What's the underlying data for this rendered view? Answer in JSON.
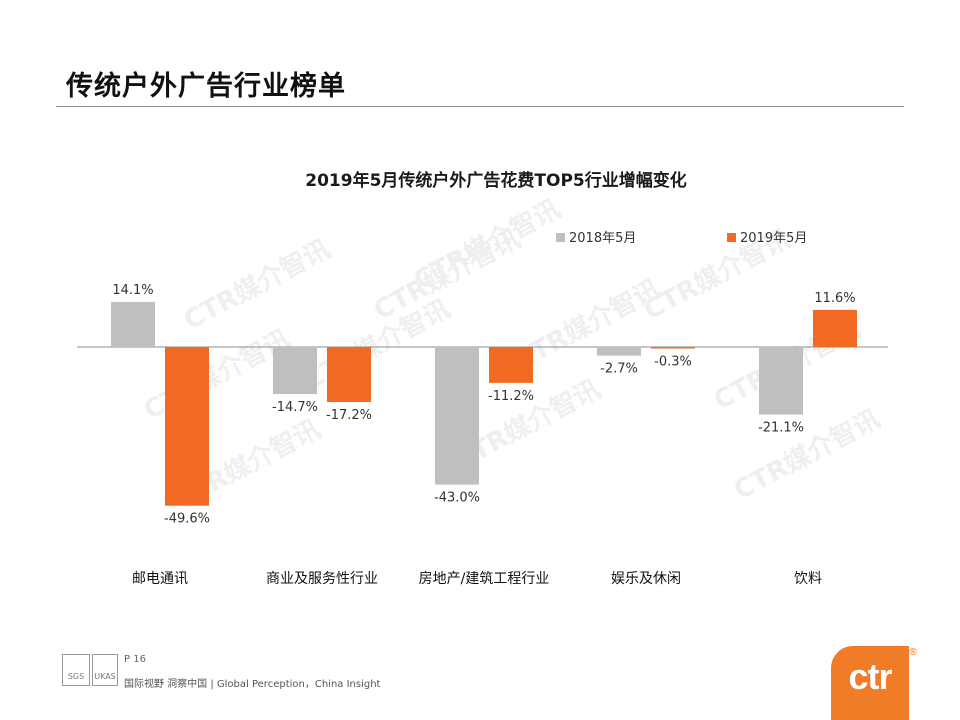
{
  "page": {
    "title": "传统户外广告行业榜单",
    "page_number": "P 16",
    "tagline": "国际视野 洞察中国 | Global Perception，China Insight",
    "logo": "ctr",
    "logo_mark": "®",
    "watermark": "CTR媒介智讯",
    "cert_left": "SGS",
    "cert_right": "UKAS"
  },
  "chart_data": {
    "type": "bar",
    "title": "2019年5月传统户外广告花费TOP5行业增幅变化",
    "categories": [
      "邮电通讯",
      "商业及服务性行业",
      "房地产/建筑工程行业",
      "娱乐及休闲",
      "饮料"
    ],
    "series": [
      {
        "name": "2018年5月",
        "color": "#bfbfbf",
        "values": [
          14.1,
          -14.7,
          -43.0,
          -2.7,
          -21.1
        ],
        "labels": [
          "14.1%",
          "-14.7%",
          "-43.0%",
          "-2.7%",
          "-21.1%"
        ]
      },
      {
        "name": "2019年5月",
        "color": "#f26a21",
        "values": [
          -49.6,
          -17.2,
          -11.2,
          -0.3,
          11.6
        ],
        "labels": [
          "-49.6%",
          "-17.2%",
          "-11.2%",
          "-0.3%",
          "11.6%"
        ]
      }
    ],
    "unit": "%",
    "xlabel": "",
    "ylabel": "",
    "ylim": [
      -60,
      20
    ],
    "grid": false,
    "legend_position": "top-right"
  }
}
